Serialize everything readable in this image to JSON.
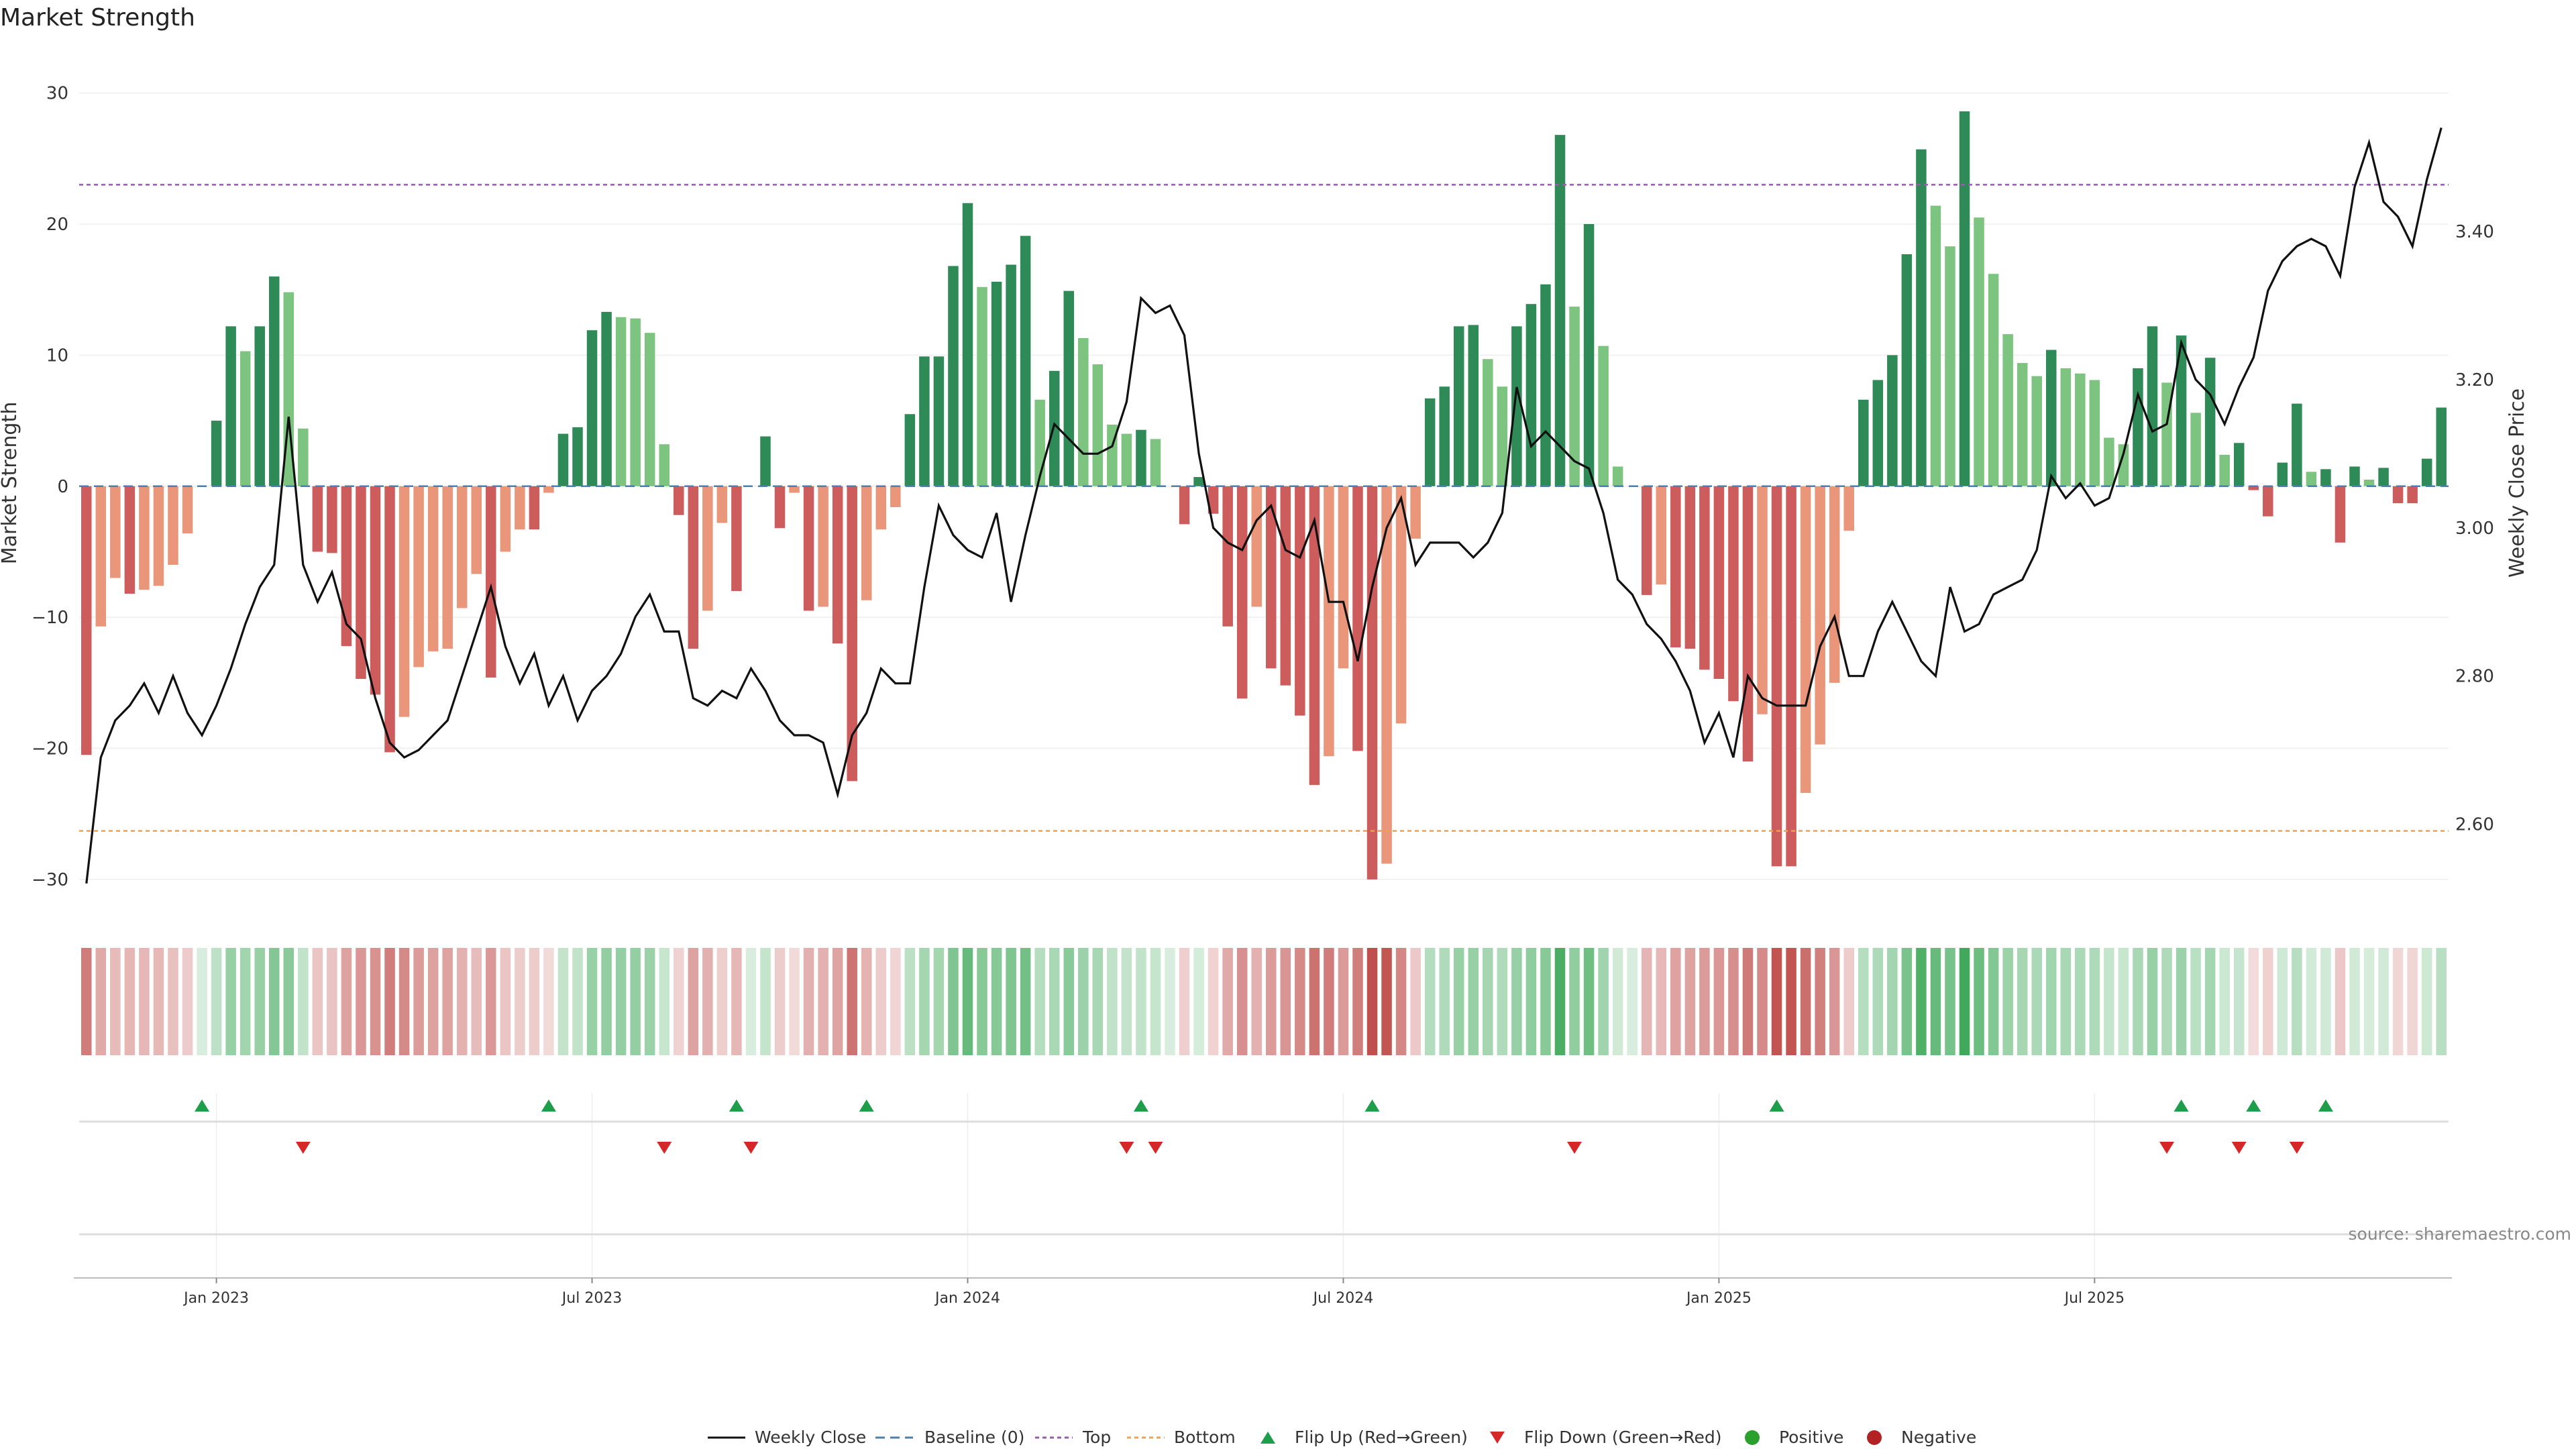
{
  "chart_data": {
    "type": "bar",
    "title": "Market Strength",
    "ylabel": "Market Strength",
    "y2label": "Weekly Close Price",
    "ylim": [
      -32,
      33
    ],
    "y2lim": [
      2.49,
      3.64
    ],
    "yticks": [
      30,
      20,
      10,
      0,
      -10,
      -20,
      -30
    ],
    "ytick_labels": [
      "30",
      "20",
      "10",
      "0",
      "−10",
      "−20",
      "−30"
    ],
    "y2ticks": [
      3.4,
      3.2,
      3.0,
      2.8,
      2.6
    ],
    "y2tick_labels": [
      "3.40",
      "3.20",
      "3.00",
      "2.80",
      "2.60"
    ],
    "xlabels": [
      "Jan 2023",
      "Jul 2023",
      "Jan 2024",
      "Jul 2024",
      "Jan 2025",
      "Jul 2025"
    ],
    "xlabel_weeks": [
      9,
      35,
      61,
      87,
      113,
      139
    ],
    "top_level": 23,
    "bottom_level": -26.3,
    "colors": {
      "pos_dark": "#2e8b57",
      "pos_light": "#7cc47f",
      "neg_dark": "#cd5c5c",
      "neg_light": "#e9967a",
      "close_line": "#111111",
      "top_line": "#9b59b6",
      "bottom_line": "#f0a050",
      "baseline": "#4a7fb0",
      "flip_up": "#1e9e4a",
      "flip_down": "#d62728",
      "positive": "#2ca02c",
      "negative": "#b22222"
    },
    "series": [
      {
        "name": "Market Strength",
        "values": [
          -20.5,
          -10.7,
          -7,
          -8.2,
          -7.9,
          -7.6,
          -6,
          -3.6,
          0,
          5,
          12.2,
          10.3,
          12.2,
          16,
          14.8,
          4.4,
          -5,
          -5.1,
          -12.2,
          -14.7,
          -15.9,
          -20.3,
          -17.6,
          -13.8,
          -12.6,
          -12.4,
          -9.3,
          -6.7,
          -14.6,
          -5,
          -3.3,
          -3.3,
          -0.5,
          4,
          4.5,
          11.9,
          13.3,
          12.9,
          12.8,
          11.7,
          3.2,
          -2.2,
          -12.4,
          -9.5,
          -2.8,
          -8,
          0,
          3.8,
          -3.2,
          -0.5,
          -9.5,
          -9.2,
          -12,
          -22.5,
          -8.7,
          -3.3,
          -1.6,
          5.5,
          9.9,
          9.9,
          16.8,
          21.6,
          15.2,
          15.6,
          16.9,
          19.1,
          6.6,
          8.8,
          14.9,
          11.3,
          9.3,
          4.7,
          4,
          4.3,
          3.6,
          0,
          -2.9,
          0.7,
          -2.1,
          -10.7,
          -16.2,
          -9.2,
          -13.9,
          -15.2,
          -17.5,
          -22.8,
          -20.6,
          -13.9,
          -20.2,
          -30,
          -28.8,
          -18.1,
          -4,
          6.7,
          7.6,
          12.2,
          12.3,
          9.7,
          7.6,
          12.2,
          13.9,
          15.4,
          26.8,
          13.7,
          20,
          10.7,
          1.5,
          0,
          -8.3,
          -7.5,
          -12.3,
          -12.4,
          -14,
          -14.7,
          -16.4,
          -21,
          -17.4,
          -29,
          -29,
          -23.4,
          -19.7,
          -15,
          -3.4,
          6.6,
          8.1,
          10,
          17.7,
          25.7,
          21.4,
          18.3,
          28.6,
          20.5,
          16.2,
          11.6,
          9.4,
          8.4,
          10.4,
          9,
          8.6,
          8.1,
          3.7,
          3.2,
          9,
          12.2,
          7.9,
          11.5,
          5.6,
          9.8,
          2.4,
          3.3,
          -0.3,
          -2.3,
          1.8,
          6.3,
          1.1,
          1.3,
          -4.3,
          1.5,
          0.5,
          1.4,
          -1.3,
          -1.3,
          2.1,
          6
        ]
      },
      {
        "name": "Weekly Close",
        "values": [
          2.52,
          2.69,
          2.74,
          2.76,
          2.79,
          2.75,
          2.8,
          2.75,
          2.72,
          2.76,
          2.81,
          2.87,
          2.92,
          2.95,
          3.15,
          2.95,
          2.9,
          2.94,
          2.87,
          2.85,
          2.77,
          2.71,
          2.69,
          2.7,
          2.72,
          2.74,
          2.8,
          2.86,
          2.92,
          2.84,
          2.79,
          2.83,
          2.76,
          2.8,
          2.74,
          2.78,
          2.8,
          2.83,
          2.88,
          2.91,
          2.86,
          2.86,
          2.77,
          2.76,
          2.78,
          2.77,
          2.81,
          2.78,
          2.74,
          2.72,
          2.72,
          2.71,
          2.64,
          2.72,
          2.75,
          2.81,
          2.79,
          2.79,
          2.92,
          3.03,
          2.99,
          2.97,
          2.96,
          3.02,
          2.9,
          2.99,
          3.07,
          3.14,
          3.12,
          3.1,
          3.1,
          3.11,
          3.17,
          3.31,
          3.29,
          3.3,
          3.26,
          3.1,
          3,
          2.98,
          2.97,
          3.01,
          3.03,
          2.97,
          2.96,
          3.01,
          2.9,
          2.9,
          2.82,
          2.92,
          3.0,
          3.04,
          2.95,
          2.98,
          2.98,
          2.98,
          2.96,
          2.98,
          3.02,
          3.19,
          3.11,
          3.13,
          3.11,
          3.09,
          3.08,
          3.02,
          2.93,
          2.91,
          2.87,
          2.85,
          2.82,
          2.78,
          2.71,
          2.75,
          2.69,
          2.8,
          2.77,
          2.76,
          2.76,
          2.76,
          2.84,
          2.88,
          2.8,
          2.8,
          2.86,
          2.9,
          2.86,
          2.82,
          2.8,
          2.92,
          2.86,
          2.87,
          2.91,
          2.92,
          2.93,
          2.97,
          3.07,
          3.04,
          3.06,
          3.03,
          3.04,
          3.1,
          3.18,
          3.13,
          3.14,
          3.25,
          3.2,
          3.18,
          3.14,
          3.19,
          3.23,
          3.32,
          3.36,
          3.38,
          3.39,
          3.38,
          3.34,
          3.46,
          3.52,
          3.44,
          3.42,
          3.38,
          3.47,
          3.54
        ]
      }
    ],
    "flip_up_weeks": [
      8,
      32,
      45,
      54,
      73,
      89,
      117,
      145,
      150,
      155
    ],
    "flip_down_weeks": [
      15,
      40,
      46,
      72,
      74,
      103,
      144,
      149,
      153
    ],
    "legend": [
      "Weekly Close",
      "Baseline (0)",
      "Top",
      "Bottom",
      "Flip Up (Red→Green)",
      "Flip Down (Green→Red)",
      "Positive",
      "Negative"
    ],
    "source": "source: sharemaestro.com",
    "legend_position": "bottom-center"
  }
}
